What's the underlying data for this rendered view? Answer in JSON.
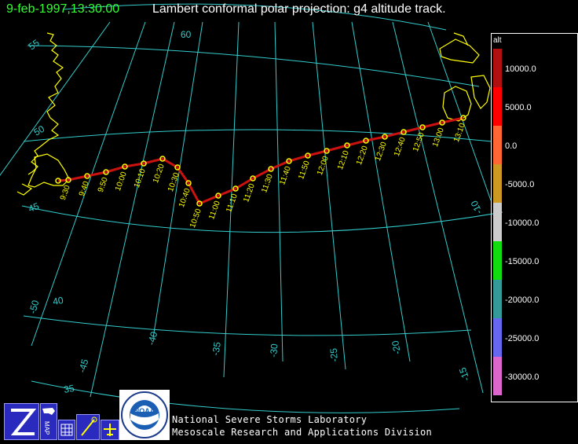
{
  "header": {
    "date_time": "9-feb-1997,13:30:00",
    "title": "Lambert conformal polar projection:  g4 altitude track."
  },
  "map": {
    "grid_color": "#33cccc",
    "coast_color": "#ffff00",
    "track_color": "#cc1111",
    "marker_color": "#ffff00",
    "latitude_labels": [
      "60",
      "55",
      "50",
      "45",
      "40",
      "35"
    ],
    "longitude_labels": [
      "-50",
      "-45",
      "-40",
      "-35",
      "-30",
      "-25",
      "-20",
      "-15",
      "-10"
    ],
    "track_time_labels": [
      "9:30",
      "9:40",
      "9:50",
      "10:00",
      "10:10",
      "10:20",
      "10:30",
      "10:40",
      "10:50",
      "11:00",
      "11:10",
      "11:20",
      "11:30",
      "11:40",
      "11:50",
      "12:00",
      "12:10",
      "12:20",
      "12:30",
      "12:40",
      "12:50",
      "13:00",
      "13:10"
    ]
  },
  "legend": {
    "title": "alt",
    "entries": [
      {
        "label": "10000.0",
        "color": "#b01010"
      },
      {
        "label": "5000.0",
        "color": "#ff0000"
      },
      {
        "label": "0.0",
        "color": "#ff6633"
      },
      {
        "label": "-5000.0",
        "color": "#cc9922"
      },
      {
        "label": "-10000.0",
        "color": "#cccccc"
      },
      {
        "label": "-15000.0",
        "color": "#11dd11"
      },
      {
        "label": "-20000.0",
        "color": "#339999"
      },
      {
        "label": "-25000.0",
        "color": "#6666ee"
      },
      {
        "label": "-30000.0",
        "color": "#dd66cc"
      }
    ]
  },
  "toolbar": {
    "map_label": "MAP"
  },
  "logo": {
    "agency": "NOAA",
    "ring_text": "NATIONAL OCEANIC AND ATMOSPHERIC ADMINISTRATION",
    "ring_text_bottom": "U.S. DEPARTMENT OF COMMERCE"
  },
  "footer": {
    "line1": "National Severe Storms Laboratory",
    "line2": "Mesoscale Research and Applications Division"
  }
}
